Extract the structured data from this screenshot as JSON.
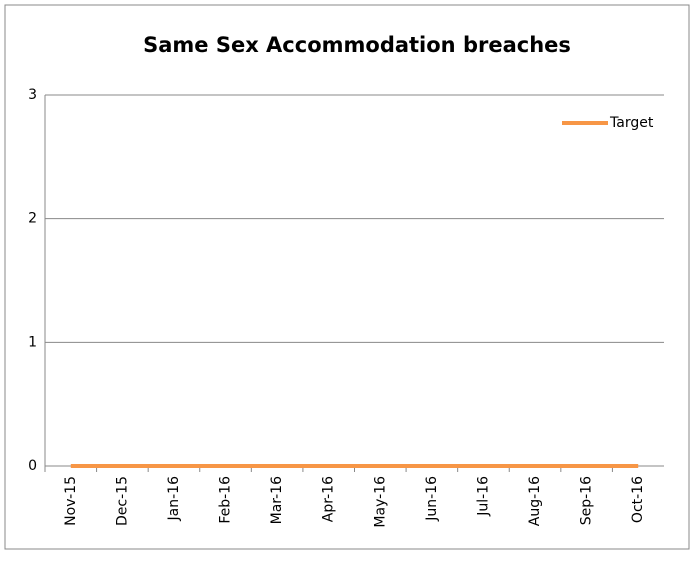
{
  "chart_data": {
    "type": "line",
    "title": "Same Sex Accommodation breaches",
    "categories": [
      "Nov-15",
      "Dec-15",
      "Jan-16",
      "Feb-16",
      "Mar-16",
      "Apr-16",
      "May-16",
      "Jun-16",
      "Jul-16",
      "Aug-16",
      "Sep-16",
      "Oct-16"
    ],
    "series": [
      {
        "name": "Target",
        "color": "#f79646",
        "values": [
          0,
          0,
          0,
          0,
          0,
          0,
          0,
          0,
          0,
          0,
          0,
          0
        ]
      }
    ],
    "ylim": [
      0,
      3
    ],
    "yticks": [
      0,
      1,
      2,
      3
    ],
    "grid": true,
    "legend": "top-right"
  }
}
